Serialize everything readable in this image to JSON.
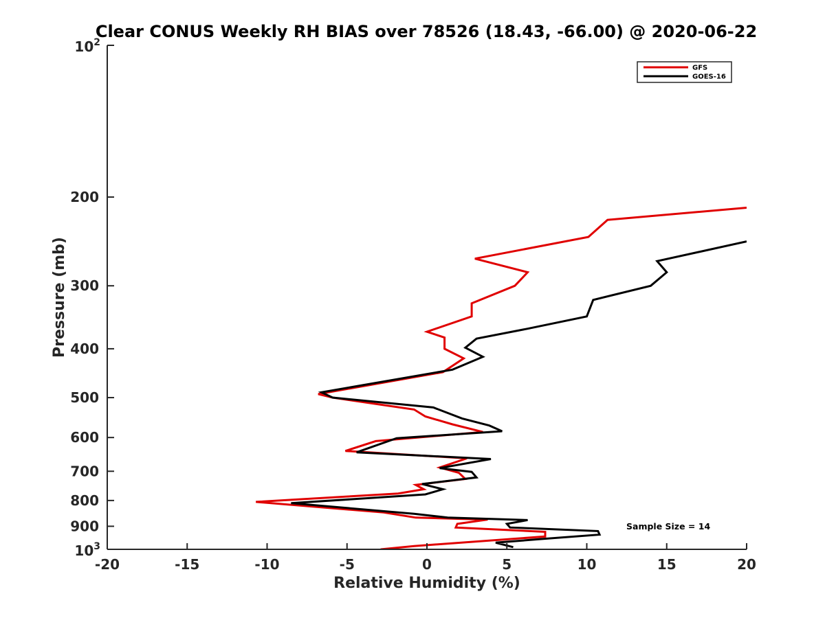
{
  "chart_data": {
    "type": "line",
    "title": "Clear CONUS Weekly RH BIAS over 78526 (18.43, -66.00) @ 2020-06-22",
    "xlabel": "Relative Humidity (%)",
    "ylabel": "Pressure (mb)",
    "xlim": [
      -20,
      20
    ],
    "ylim": [
      100,
      1000
    ],
    "y_scale": "log",
    "y_reversed": true,
    "grid": false,
    "legend_position": "top-right",
    "x_ticks": [
      "-20",
      "-15",
      "-10",
      "-5",
      "0",
      "5",
      "10",
      "15",
      "20"
    ],
    "y_ticks": [
      "200",
      "300",
      "400",
      "500",
      "600",
      "700",
      "800",
      "900"
    ],
    "y_tick_power_labels": [
      {
        "base": "10",
        "exp": "2"
      },
      {
        "base": "10",
        "exp": "3"
      }
    ],
    "annotation": "Sample Size = 14",
    "series": [
      {
        "name": "GFS",
        "color": "#e00000",
        "x": [
          20.0,
          11.3,
          10.1,
          3.0,
          6.3,
          5.5,
          2.8,
          2.8,
          0.0,
          1.1,
          1.1,
          2.3,
          1.0,
          -6.8,
          -5.9,
          -0.8,
          -0.1,
          1.6,
          3.5,
          -3.2,
          -5.1,
          2.5,
          0.8,
          2.0,
          2.4,
          -0.7,
          -0.2,
          -1.8,
          -10.7,
          -2.7,
          -0.7,
          3.8,
          1.9,
          1.8,
          7.4,
          7.4,
          -0.8,
          -2.9
        ],
        "y": [
          210,
          222,
          240,
          265,
          282,
          300,
          325,
          345,
          370,
          380,
          400,
          418,
          445,
          492,
          500,
          528,
          545,
          565,
          585,
          610,
          638,
          660,
          688,
          705,
          725,
          745,
          760,
          775,
          805,
          845,
          865,
          873,
          890,
          905,
          923,
          943,
          985,
          1000
        ]
      },
      {
        "name": "GOES-16",
        "color": "#000000",
        "x": [
          20.0,
          14.4,
          15.0,
          14.0,
          10.4,
          10.0,
          6.3,
          3.1,
          2.4,
          3.5,
          1.6,
          -6.6,
          -5.9,
          0.4,
          2.2,
          3.9,
          4.7,
          -1.9,
          -4.4,
          4.0,
          0.8,
          2.8,
          3.1,
          -0.3,
          1.0,
          -0.1,
          -8.5,
          -0.8,
          1.3,
          6.3,
          5.0,
          5.2,
          10.7,
          10.8,
          7.0,
          4.3,
          5.4
        ],
        "y": [
          245,
          268,
          282,
          300,
          320,
          345,
          365,
          382,
          398,
          415,
          440,
          488,
          500,
          523,
          550,
          568,
          583,
          602,
          642,
          662,
          690,
          702,
          720,
          742,
          760,
          778,
          810,
          850,
          865,
          875,
          890,
          905,
          920,
          935,
          955,
          970,
          990
        ]
      }
    ]
  }
}
